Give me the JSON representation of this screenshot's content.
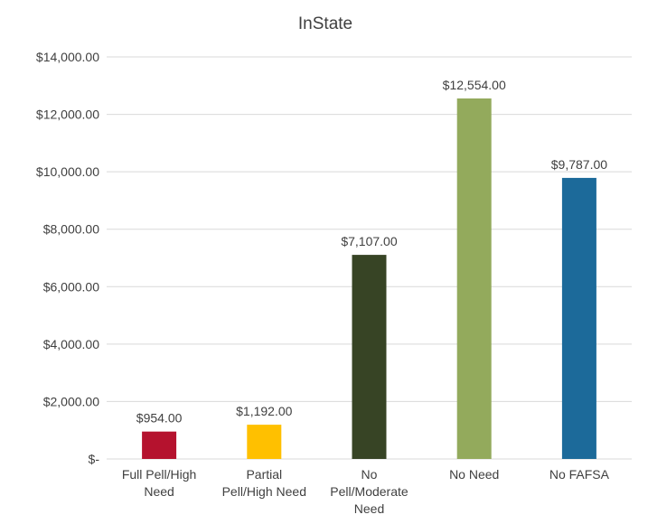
{
  "chart_data": {
    "type": "bar",
    "title": "InState",
    "xlabel": "",
    "ylabel": "",
    "categories": [
      [
        "Full Pell/High",
        "Need"
      ],
      [
        "Partial",
        "Pell/High Need"
      ],
      [
        "No",
        "Pell/Moderate",
        "Need"
      ],
      [
        "No Need"
      ],
      [
        "No FAFSA"
      ]
    ],
    "values": [
      954,
      1192,
      7107,
      12554,
      9787
    ],
    "data_labels": [
      "$954.00",
      "$1,192.00",
      "$7,107.00",
      "$12,554.00",
      "$9,787.00"
    ],
    "colors": [
      "#b5122e",
      "#ffc000",
      "#374425",
      "#93aa5c",
      "#1c6a9a"
    ],
    "ylim": [
      0,
      14000
    ],
    "yticks": [
      0,
      2000,
      4000,
      6000,
      8000,
      10000,
      12000,
      14000
    ],
    "ytick_labels": [
      "$-",
      "$2,000.00",
      "$4,000.00",
      "$6,000.00",
      "$8,000.00",
      "$10,000.00",
      "$12,000.00",
      "$14,000.00"
    ],
    "grid": true,
    "legend": "none",
    "gridline_color": "#d9d9d9"
  }
}
